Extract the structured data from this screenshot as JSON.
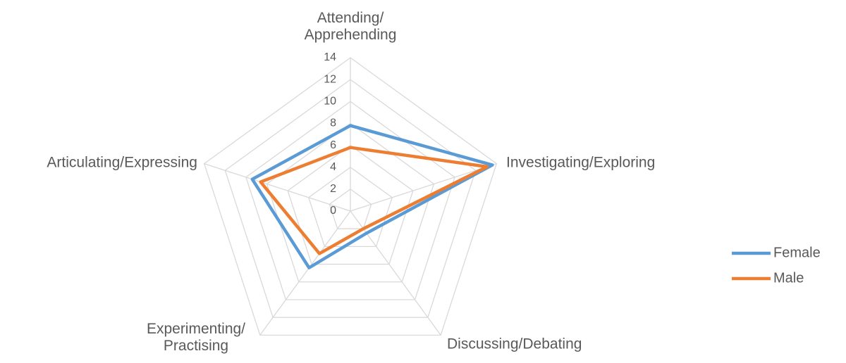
{
  "chart_data": {
    "type": "radar",
    "categories": [
      "Attending/\nApprehending",
      "Investigating/Exploring",
      "Discussing/Debating",
      "Experimenting/\nPractising",
      "Articulating/Expressing"
    ],
    "series": [
      {
        "name": "Female",
        "color": "#5b9bd5",
        "values": [
          7.8,
          13.6,
          2.5,
          6.4,
          9.4
        ]
      },
      {
        "name": "Male",
        "color": "#ed7d31",
        "values": [
          5.8,
          13.1,
          2.0,
          4.8,
          8.6
        ]
      }
    ],
    "ylim": [
      0,
      14
    ],
    "yticks": [
      0,
      2,
      4,
      6,
      8,
      10,
      12,
      14
    ],
    "grid": true,
    "legend": "right"
  }
}
